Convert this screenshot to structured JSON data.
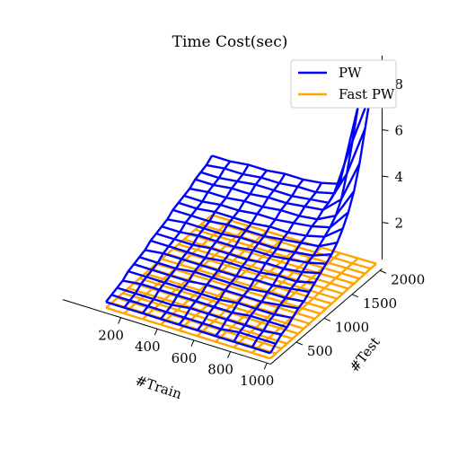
{
  "chart_data": {
    "type": "surface-wireframe",
    "title": "Time Cost(sec)",
    "xlabel": "#Train",
    "ylabel": "#Test",
    "zlabel": "",
    "xlim": [
      100,
      1000
    ],
    "ylim": [
      100,
      2000
    ],
    "zlim": [
      0,
      9
    ],
    "x_ticks": [
      200,
      400,
      600,
      800,
      1000
    ],
    "y_ticks": [
      500,
      1000,
      1500,
      2000
    ],
    "z_ticks": [
      2,
      4,
      6,
      8
    ],
    "legend_position": "top-right",
    "x_grid": [
      100,
      200,
      300,
      400,
      500,
      600,
      700,
      800,
      900,
      1000
    ],
    "y_grid": [
      100,
      200,
      300,
      400,
      500,
      600,
      700,
      800,
      900,
      1000,
      1100,
      1200,
      1300,
      1400,
      1500,
      1600,
      1700,
      1800,
      1900,
      2000
    ],
    "series": [
      {
        "name": "PW",
        "color": "#0000ff",
        "z": [
          [
            0.3,
            0.4,
            0.5,
            0.6,
            0.8,
            0.9,
            1.0,
            1.1,
            1.3,
            1.4,
            1.5,
            1.6,
            1.8,
            1.9,
            2.0,
            2.1,
            2.3,
            2.4,
            2.5,
            2.7
          ],
          [
            0.3,
            0.4,
            0.5,
            0.7,
            0.8,
            0.9,
            1.0,
            1.2,
            1.3,
            1.4,
            1.5,
            1.7,
            1.8,
            1.9,
            2.0,
            2.2,
            2.3,
            2.4,
            2.6,
            2.7
          ],
          [
            0.3,
            0.4,
            0.5,
            0.7,
            0.8,
            0.9,
            1.0,
            1.2,
            1.3,
            1.4,
            1.6,
            1.7,
            1.8,
            2.0,
            2.1,
            2.2,
            2.4,
            2.5,
            2.6,
            2.8
          ],
          [
            0.3,
            0.4,
            0.5,
            0.7,
            0.8,
            0.9,
            1.1,
            1.2,
            1.3,
            1.5,
            1.6,
            1.7,
            1.9,
            2.0,
            2.1,
            2.3,
            2.4,
            2.6,
            2.7,
            2.8
          ],
          [
            0.3,
            0.4,
            0.6,
            0.7,
            0.8,
            1.0,
            1.1,
            1.2,
            1.4,
            1.5,
            1.6,
            1.8,
            1.9,
            2.0,
            2.2,
            2.3,
            2.5,
            2.6,
            2.7,
            2.9
          ],
          [
            0.3,
            0.4,
            0.6,
            0.7,
            0.8,
            1.0,
            1.1,
            1.2,
            1.4,
            1.5,
            1.7,
            1.8,
            1.9,
            2.1,
            2.2,
            2.4,
            2.5,
            2.6,
            2.8,
            2.9
          ],
          [
            0.3,
            0.4,
            0.6,
            0.7,
            0.9,
            1.0,
            1.1,
            1.3,
            1.4,
            1.6,
            1.7,
            1.8,
            2.0,
            2.1,
            2.3,
            2.4,
            2.6,
            2.7,
            2.8,
            3.0
          ],
          [
            0.3,
            0.5,
            0.6,
            0.8,
            0.9,
            1.0,
            1.2,
            1.3,
            1.5,
            1.6,
            1.8,
            1.9,
            2.1,
            2.2,
            2.4,
            2.5,
            2.7,
            2.8,
            3.0,
            3.2
          ],
          [
            0.3,
            0.5,
            0.6,
            0.8,
            0.9,
            1.1,
            1.2,
            1.4,
            1.5,
            1.7,
            1.9,
            2.0,
            2.2,
            2.4,
            2.6,
            2.9,
            3.4,
            4.3,
            5.5,
            6.8
          ],
          [
            0.3,
            0.5,
            0.7,
            0.8,
            1.0,
            1.2,
            1.3,
            1.5,
            1.7,
            1.9,
            2.1,
            2.3,
            2.6,
            3.0,
            3.5,
            4.2,
            5.2,
            6.5,
            7.8,
            9.0
          ]
        ]
      },
      {
        "name": "Fast PW",
        "color": "#ffa500",
        "z": [
          [
            0.05,
            0.05,
            0.06,
            0.06,
            0.07,
            0.07,
            0.08,
            0.08,
            0.09,
            0.09,
            0.1,
            0.1,
            0.11,
            0.11,
            0.12,
            0.12,
            0.13,
            0.13,
            0.14,
            0.14
          ],
          [
            0.05,
            0.06,
            0.06,
            0.07,
            0.07,
            0.08,
            0.08,
            0.09,
            0.09,
            0.1,
            0.1,
            0.11,
            0.11,
            0.12,
            0.12,
            0.13,
            0.13,
            0.14,
            0.14,
            0.15
          ],
          [
            0.05,
            0.06,
            0.06,
            0.07,
            0.08,
            0.08,
            0.09,
            0.09,
            0.1,
            0.1,
            0.11,
            0.12,
            0.12,
            0.13,
            0.13,
            0.14,
            0.15,
            0.15,
            0.16,
            0.16
          ],
          [
            0.06,
            0.06,
            0.07,
            0.07,
            0.08,
            0.09,
            0.09,
            0.1,
            0.11,
            0.11,
            0.12,
            0.12,
            0.13,
            0.14,
            0.14,
            0.15,
            0.16,
            0.16,
            0.17,
            0.17
          ],
          [
            0.06,
            0.06,
            0.07,
            0.08,
            0.08,
            0.09,
            0.1,
            0.1,
            0.11,
            0.12,
            0.12,
            0.13,
            0.14,
            0.14,
            0.15,
            0.16,
            0.16,
            0.17,
            0.18,
            0.18
          ],
          [
            0.06,
            0.07,
            0.07,
            0.08,
            0.09,
            0.1,
            0.1,
            0.11,
            0.12,
            0.12,
            0.13,
            0.14,
            0.15,
            0.15,
            0.16,
            0.17,
            0.18,
            0.18,
            0.19,
            0.2
          ],
          [
            0.06,
            0.07,
            0.08,
            0.08,
            0.09,
            0.1,
            0.11,
            0.11,
            0.12,
            0.13,
            0.14,
            0.15,
            0.15,
            0.16,
            0.17,
            0.18,
            0.19,
            0.19,
            0.2,
            0.21
          ],
          [
            0.06,
            0.07,
            0.08,
            0.09,
            0.1,
            0.1,
            0.11,
            0.12,
            0.13,
            0.14,
            0.14,
            0.15,
            0.16,
            0.17,
            0.18,
            0.19,
            0.2,
            0.2,
            0.21,
            0.22
          ],
          [
            0.07,
            0.07,
            0.08,
            0.09,
            0.1,
            0.11,
            0.12,
            0.13,
            0.13,
            0.14,
            0.15,
            0.16,
            0.17,
            0.18,
            0.19,
            0.2,
            0.21,
            0.22,
            0.22,
            0.23
          ],
          [
            0.07,
            0.08,
            0.09,
            0.09,
            0.1,
            0.11,
            0.12,
            0.13,
            0.14,
            0.15,
            0.16,
            0.17,
            0.18,
            0.19,
            0.2,
            0.21,
            0.22,
            0.23,
            0.24,
            0.25
          ]
        ]
      }
    ]
  }
}
